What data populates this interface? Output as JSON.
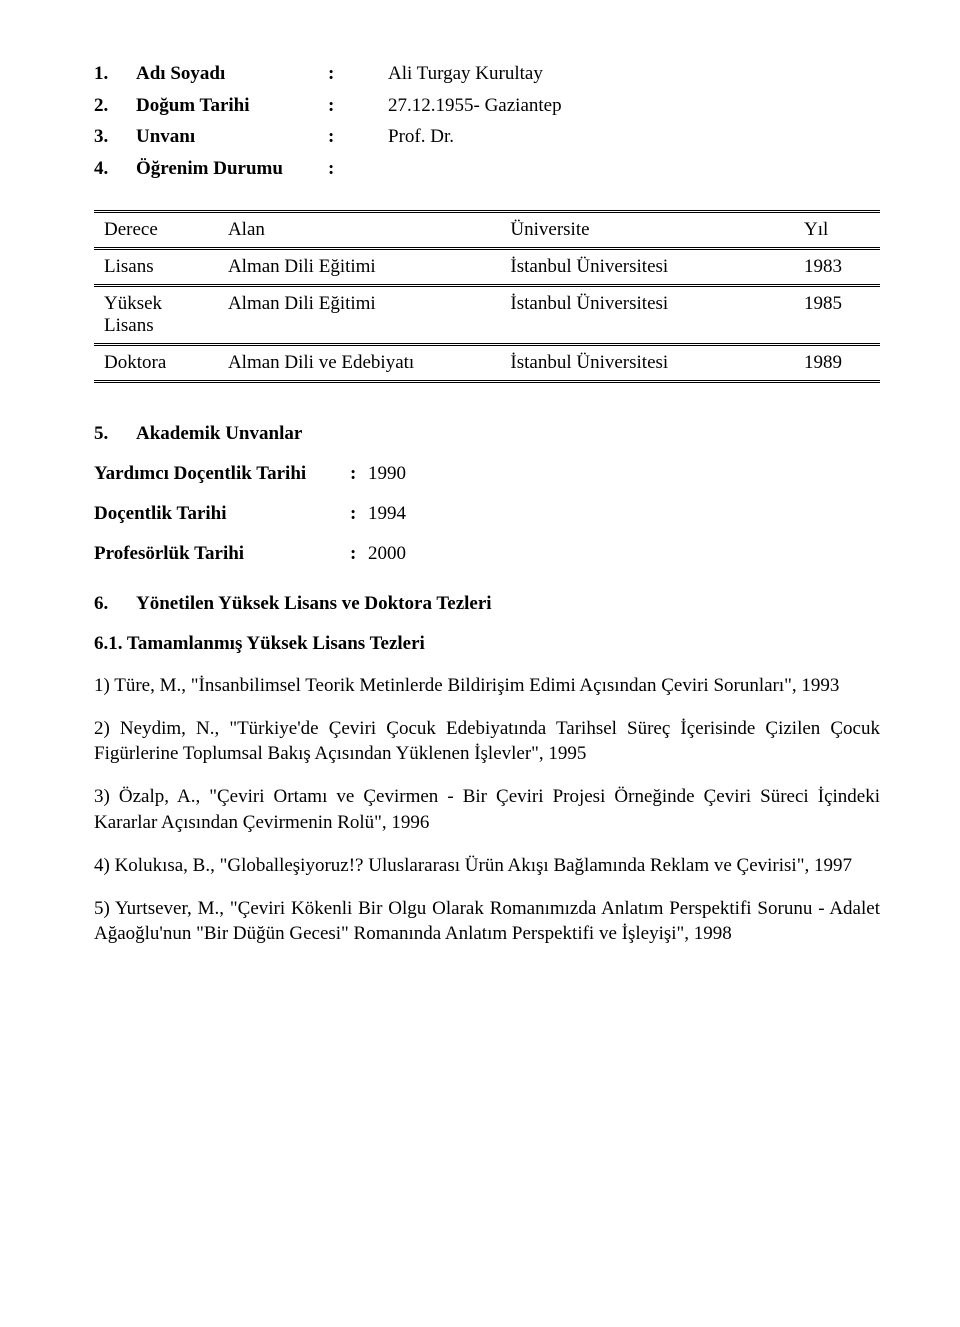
{
  "info": [
    {
      "num": "1.",
      "label": "Adı Soyadı",
      "value": "Ali Turgay Kurultay"
    },
    {
      "num": "2.",
      "label": "Doğum Tarihi",
      "value": "27.12.1955- Gaziantep"
    },
    {
      "num": "3.",
      "label": "Unvanı",
      "value": "Prof. Dr."
    },
    {
      "num": "4.",
      "label": "Öğrenim Durumu",
      "value": ""
    }
  ],
  "colon": ":",
  "edu": {
    "headers": {
      "derece": "Derece",
      "alan": "Alan",
      "uni": "Üniversite",
      "yil": "Yıl"
    },
    "rows": [
      {
        "derece": "Lisans",
        "alan": "Alman Dili Eğitimi",
        "uni": "İstanbul Üniversitesi",
        "yil": "1983"
      },
      {
        "derece": "Yüksek Lisans",
        "alan": "Alman Dili Eğitimi",
        "uni": "İstanbul Üniversitesi",
        "yil": "1985"
      },
      {
        "derece": "Doktora",
        "alan": "Alman Dili ve Edebiyatı",
        "uni": "İstanbul Üniversitesi",
        "yil": "1989"
      }
    ]
  },
  "section5": {
    "num": "5.",
    "title": "Akademik Unvanlar"
  },
  "unvanlar": [
    {
      "label": "Yardımcı Doçentlik Tarihi",
      "value": "1990"
    },
    {
      "label": "Doçentlik Tarihi",
      "value": "1994"
    },
    {
      "label": "Profesörlük Tarihi",
      "value": "2000"
    }
  ],
  "section6": {
    "num": "6.",
    "title": "Yönetilen Yüksek Lisans ve Doktora Tezleri"
  },
  "section6_1": "6.1. Tamamlanmış Yüksek Lisans Tezleri",
  "theses": [
    "1) Türe, M., \"İnsanbilimsel Teorik Metinlerde Bildirişim Edimi Açısından Çeviri Sorunları\", 1993",
    "2) Neydim, N., \"Türkiye'de Çeviri Çocuk Edebiyatında Tarihsel Süreç İçerisinde Çizilen Çocuk Figürlerine Toplumsal Bakış Açısından Yüklenen İşlevler\", 1995",
    "3) Özalp, A., \"Çeviri Ortamı ve Çevirmen - Bir Çeviri Projesi Örneğinde Çeviri Süreci İçindeki Kararlar Açısından Çevirmenin Rolü\", 1996",
    "4) Kolukısa, B., \"Globalleşiyoruz!? Uluslararası Ürün Akışı Bağlamında Reklam ve Çevirisi\", 1997",
    "5) Yurtsever, M., \"Çeviri Kökenli Bir Olgu Olarak Romanımızda Anlatım Perspektifi Sorunu - Adalet Ağaoğlu'nun \"Bir Düğün Gecesi\" Romanında Anlatım Perspektifi ve İşleyişi\", 1998"
  ]
}
